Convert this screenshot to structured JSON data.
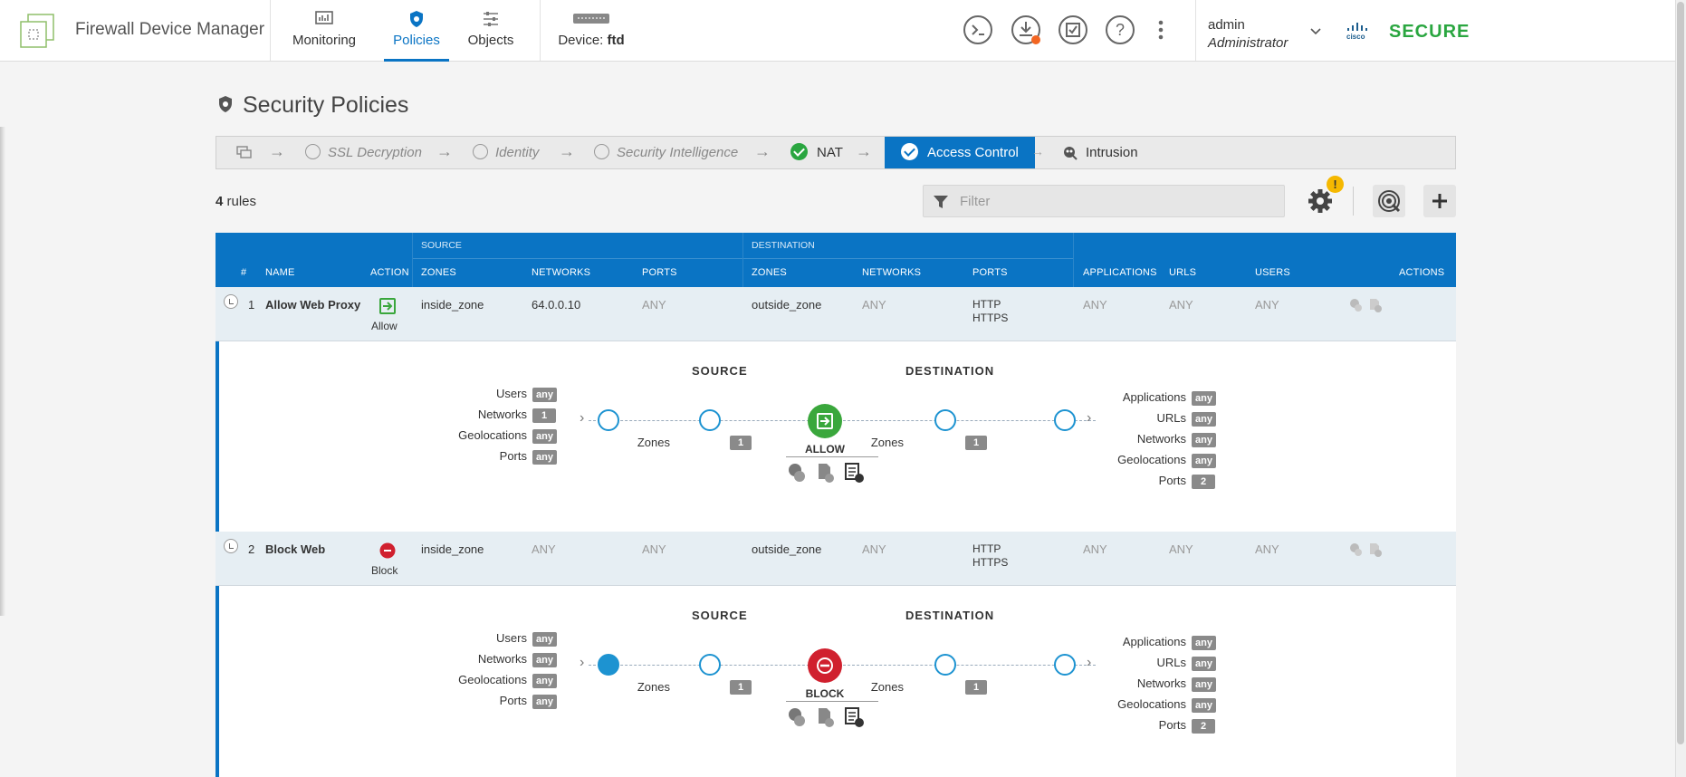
{
  "app": {
    "title": "Firewall Device Manager",
    "brand": "SECURE",
    "brand_color": "#2aa640",
    "accent": "#0a74c4"
  },
  "nav": [
    {
      "label": "Monitoring",
      "icon": "monitoring-icon"
    },
    {
      "label": "Policies",
      "icon": "policies-shield-icon",
      "active": true
    },
    {
      "label": "Objects",
      "icon": "objects-sliders-icon"
    },
    {
      "label_prefix": "Device: ",
      "label_value": "ftd",
      "icon": "device-icon"
    }
  ],
  "user": {
    "name": "admin",
    "role": "Administrator"
  },
  "page": {
    "title": "Security Policies"
  },
  "breadcrumb": [
    {
      "label": "SSL Decryption",
      "state": "pending"
    },
    {
      "label": "Identity",
      "state": "pending"
    },
    {
      "label": "Security Intelligence",
      "state": "pending"
    },
    {
      "label": "NAT",
      "state": "done"
    },
    {
      "label": "Access Control",
      "state": "active"
    },
    {
      "label": "Intrusion",
      "state": "next"
    }
  ],
  "toolbar": {
    "rules_count": "4",
    "rules_suffix": " rules",
    "filter_placeholder": "Filter",
    "warn_badge": "!"
  },
  "table": {
    "group_source": "SOURCE",
    "group_destination": "DESTINATION",
    "headers": {
      "num": "#",
      "name": "NAME",
      "action": "ACTION",
      "src_zones": "ZONES",
      "src_networks": "NETWORKS",
      "src_ports": "PORTS",
      "dst_zones": "ZONES",
      "dst_networks": "NETWORKS",
      "dst_ports": "PORTS",
      "applications": "APPLICATIONS",
      "urls": "URLS",
      "users": "USERS",
      "actions": "ACTIONS"
    },
    "rows": [
      {
        "num": "1",
        "name": "Allow Web Proxy",
        "action": "Allow",
        "src_zones": "inside_zone",
        "src_networks": "64.0.0.10",
        "src_ports": "ANY",
        "dst_zones": "outside_zone",
        "dst_networks": "ANY",
        "dst_ports_1": "HTTP",
        "dst_ports_2": "HTTPS",
        "applications": "ANY",
        "urls": "ANY",
        "users": "ANY"
      },
      {
        "num": "2",
        "name": "Block Web",
        "action": "Block",
        "src_zones": "inside_zone",
        "src_networks": "ANY",
        "src_ports": "ANY",
        "dst_zones": "outside_zone",
        "dst_networks": "ANY",
        "dst_ports_1": "HTTP",
        "dst_ports_2": "HTTPS",
        "applications": "ANY",
        "urls": "ANY",
        "users": "ANY"
      }
    ]
  },
  "details": [
    {
      "source_title": "SOURCE",
      "destination_title": "DESTINATION",
      "left": [
        {
          "label": "Users",
          "value": "any"
        },
        {
          "label": "Networks",
          "value": "1"
        },
        {
          "label": "Geolocations",
          "value": "any"
        },
        {
          "label": "Ports",
          "value": "any"
        }
      ],
      "src_zones_label": "Zones",
      "src_zones_value": "1",
      "action": "ALLOW",
      "action_color": "#3aa73c",
      "dst_zones_label": "Zones",
      "dst_zones_value": "1",
      "right": [
        {
          "label": "Applications",
          "value": "any"
        },
        {
          "label": "URLs",
          "value": "any"
        },
        {
          "label": "Networks",
          "value": "any"
        },
        {
          "label": "Geolocations",
          "value": "any"
        },
        {
          "label": "Ports",
          "value": "2"
        }
      ]
    },
    {
      "source_title": "SOURCE",
      "destination_title": "DESTINATION",
      "left": [
        {
          "label": "Users",
          "value": "any"
        },
        {
          "label": "Networks",
          "value": "any"
        },
        {
          "label": "Geolocations",
          "value": "any"
        },
        {
          "label": "Ports",
          "value": "any"
        }
      ],
      "src_zones_label": "Zones",
      "src_zones_value": "1",
      "action": "BLOCK",
      "action_color": "#d0202e",
      "dst_zones_label": "Zones",
      "dst_zones_value": "1",
      "right": [
        {
          "label": "Applications",
          "value": "any"
        },
        {
          "label": "URLs",
          "value": "any"
        },
        {
          "label": "Networks",
          "value": "any"
        },
        {
          "label": "Geolocations",
          "value": "any"
        },
        {
          "label": "Ports",
          "value": "2"
        }
      ]
    }
  ]
}
